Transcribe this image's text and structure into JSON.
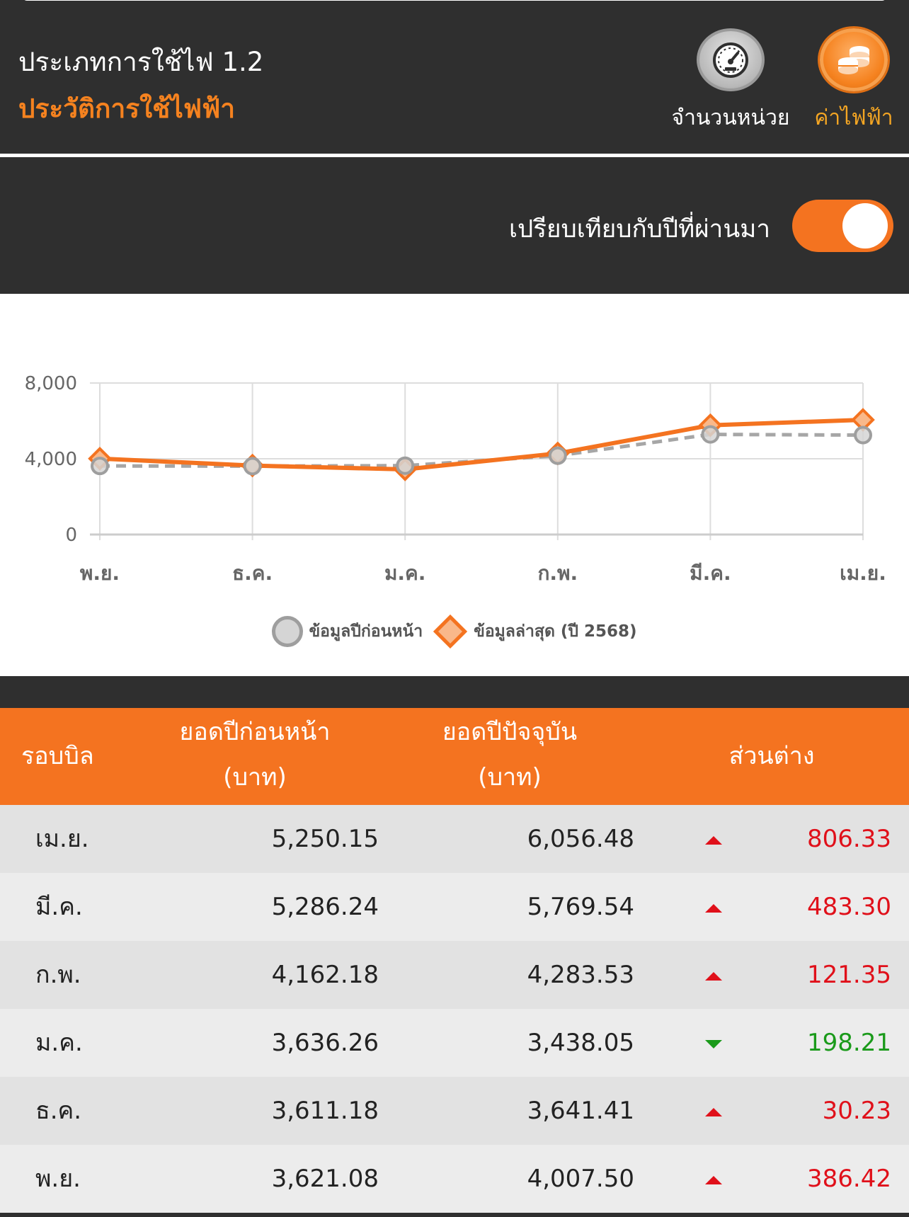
{
  "header": {
    "title": "ประเภทการใช้ไฟ 1.2",
    "subtitle": "ประวัติการใช้ไฟฟ้า",
    "buttons": [
      {
        "label": "จำนวนหน่วย",
        "icon": "gauge-icon",
        "active": false
      },
      {
        "label": "ค่าไฟฟ้า",
        "icon": "coins-icon",
        "active": true
      }
    ]
  },
  "compare": {
    "label": "เปรียบเทียบกับปีที่ผ่านมา",
    "enabled": true
  },
  "colors": {
    "accent": "#f47320",
    "previous_series": "#9e9e9e",
    "increase": "#e0101a",
    "decrease": "#1a9a1a"
  },
  "chart_data": {
    "type": "line",
    "categories": [
      "พ.ย.",
      "ธ.ค.",
      "ม.ค.",
      "ก.พ.",
      "มี.ค.",
      "เม.ย."
    ],
    "y_ticks": [
      "0",
      "4,000",
      "8,000"
    ],
    "ylim": [
      0,
      8000
    ],
    "grid": true,
    "legend": "bottom",
    "series": [
      {
        "name": "ข้อมูลปีก่อนหน้า",
        "style": "dashed",
        "marker": "circle",
        "values": [
          3621.08,
          3611.18,
          3636.26,
          4162.18,
          5286.24,
          5250.15
        ]
      },
      {
        "name": "ข้อมูลล่าสุด (ปี 2568)",
        "style": "solid",
        "marker": "diamond",
        "values": [
          4007.5,
          3641.41,
          3438.05,
          4283.53,
          5769.54,
          6056.48
        ]
      }
    ]
  },
  "table": {
    "headers": {
      "month": "รอบบิล",
      "prev_line1": "ยอดปีก่อนหน้า",
      "prev_line2": "(บาท)",
      "curr_line1": "ยอดปีปัจจุบัน",
      "curr_line2": "(บาท)",
      "diff": "ส่วนต่าง"
    },
    "rows": [
      {
        "month": "เม.ย.",
        "prev": "5,250.15",
        "curr": "6,056.48",
        "direction": "up",
        "diff": "806.33"
      },
      {
        "month": "มี.ค.",
        "prev": "5,286.24",
        "curr": "5,769.54",
        "direction": "up",
        "diff": "483.30"
      },
      {
        "month": "ก.พ.",
        "prev": "4,162.18",
        "curr": "4,283.53",
        "direction": "up",
        "diff": "121.35"
      },
      {
        "month": "ม.ค.",
        "prev": "3,636.26",
        "curr": "3,438.05",
        "direction": "down",
        "diff": "198.21"
      },
      {
        "month": "ธ.ค.",
        "prev": "3,611.18",
        "curr": "3,641.41",
        "direction": "up",
        "diff": "30.23"
      },
      {
        "month": "พ.ย.",
        "prev": "3,621.08",
        "curr": "4,007.50",
        "direction": "up",
        "diff": "386.42"
      }
    ]
  }
}
